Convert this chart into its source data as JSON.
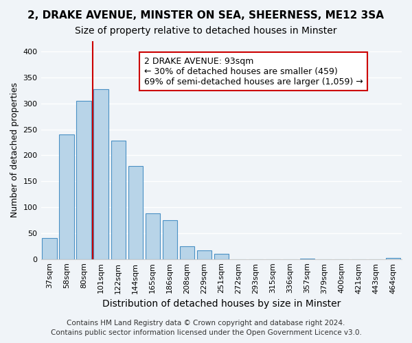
{
  "title": "2, DRAKE AVENUE, MINSTER ON SEA, SHEERNESS, ME12 3SA",
  "subtitle": "Size of property relative to detached houses in Minster",
  "xlabel": "Distribution of detached houses by size in Minster",
  "ylabel": "Number of detached properties",
  "categories": [
    "37sqm",
    "58sqm",
    "80sqm",
    "101sqm",
    "122sqm",
    "144sqm",
    "165sqm",
    "186sqm",
    "208sqm",
    "229sqm",
    "251sqm",
    "272sqm",
    "293sqm",
    "315sqm",
    "336sqm",
    "357sqm",
    "379sqm",
    "400sqm",
    "421sqm",
    "443sqm",
    "464sqm"
  ],
  "values": [
    41,
    240,
    305,
    327,
    228,
    180,
    88,
    75,
    25,
    17,
    10,
    0,
    0,
    0,
    0,
    1,
    0,
    0,
    0,
    0,
    2
  ],
  "bar_color": "#b8d4e8",
  "bar_edge_color": "#4a90c4",
  "property_line_x": 3,
  "annotation_text": "2 DRAKE AVENUE: 93sqm\n← 30% of detached houses are smaller (459)\n69% of semi-detached houses are larger (1,059) →",
  "annotation_box_color": "#ffffff",
  "annotation_box_edge_color": "#cc0000",
  "vline_color": "#cc0000",
  "ylim": [
    0,
    420
  ],
  "footer1": "Contains HM Land Registry data © Crown copyright and database right 2024.",
  "footer2": "Contains public sector information licensed under the Open Government Licence v3.0.",
  "background_color": "#f0f4f8",
  "title_fontsize": 11,
  "subtitle_fontsize": 10,
  "xlabel_fontsize": 10,
  "ylabel_fontsize": 9,
  "tick_fontsize": 8,
  "annotation_fontsize": 9,
  "footer_fontsize": 7.5
}
